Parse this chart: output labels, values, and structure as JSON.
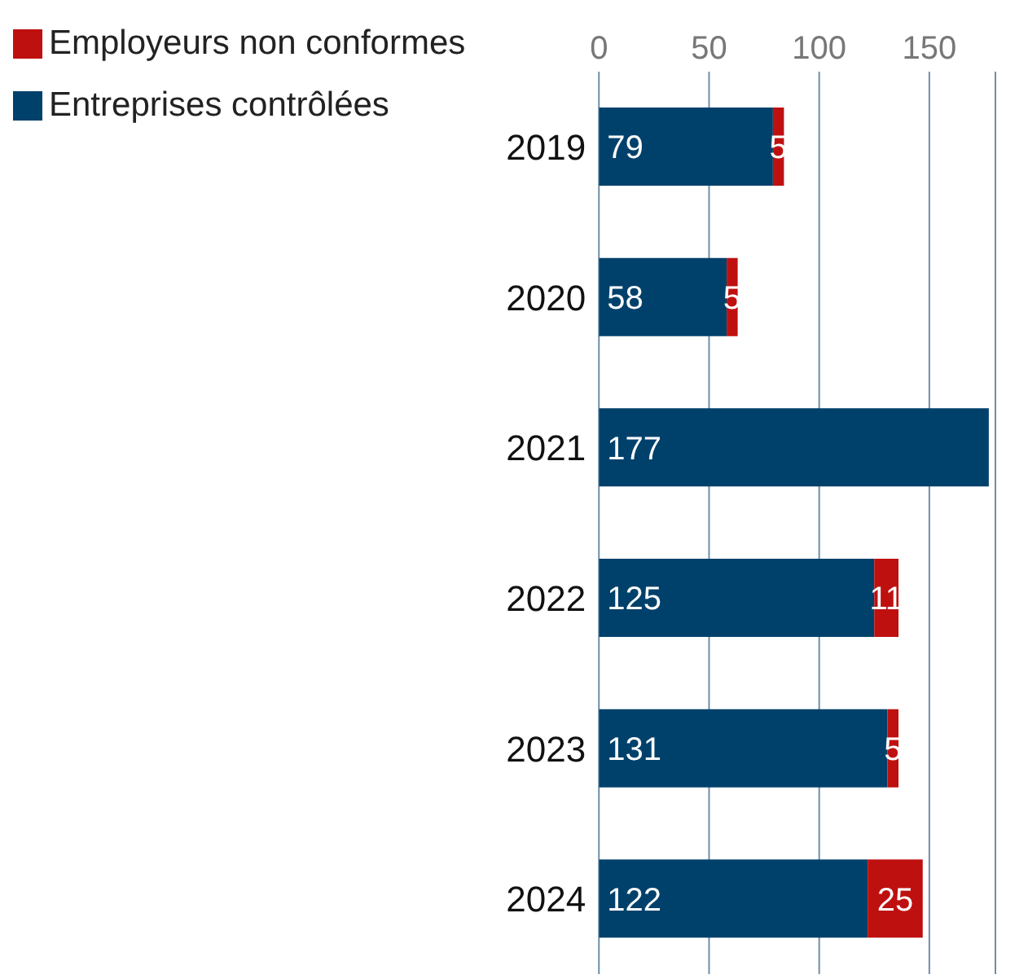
{
  "chart_data": {
    "type": "bar",
    "orientation": "horizontal",
    "stacked": true,
    "categories": [
      "2019",
      "2020",
      "2021",
      "2022",
      "2023",
      "2024"
    ],
    "series": [
      {
        "name": "Entreprises contrôlées",
        "color": "#00416b",
        "values": [
          79,
          58,
          177,
          125,
          131,
          122
        ]
      },
      {
        "name": "Employeurs non conformes",
        "color": "#bf1010",
        "values": [
          5,
          5,
          null,
          11,
          5,
          25
        ]
      }
    ],
    "xlim": [
      0,
      180
    ],
    "xticks": [
      0,
      50,
      100,
      150
    ],
    "grid": "x",
    "legend": "top left",
    "data_labels": true
  }
}
